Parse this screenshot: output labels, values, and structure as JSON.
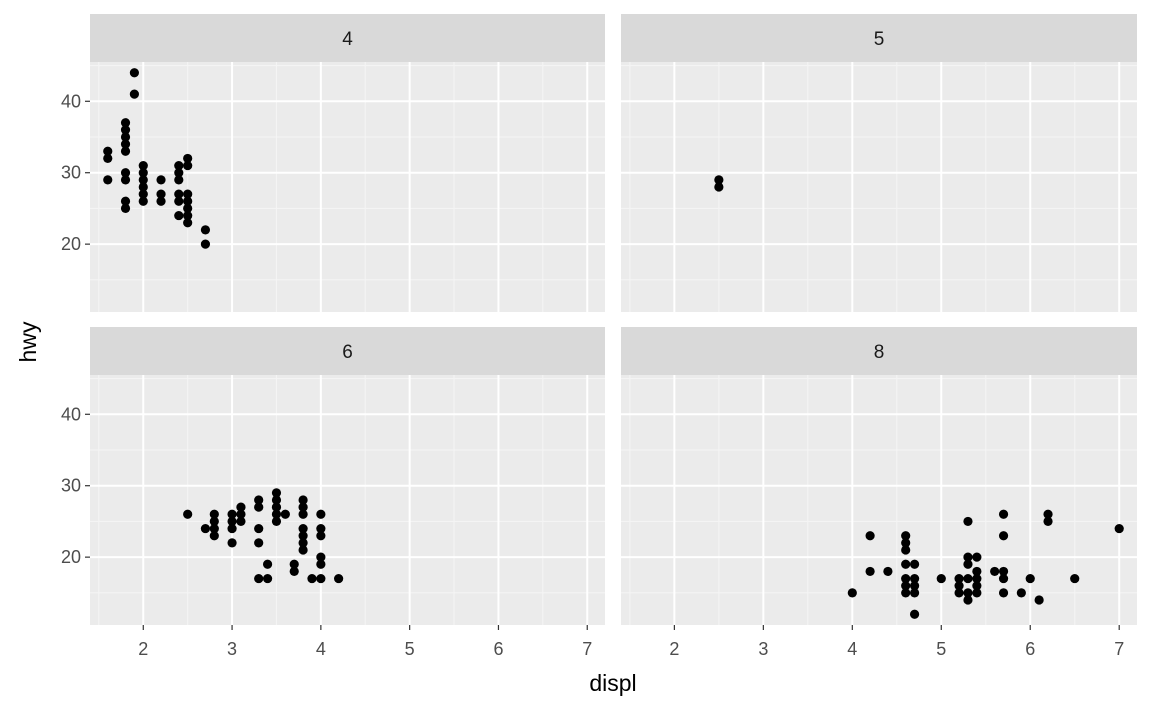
{
  "colors": {
    "panel_background": "#ebebeb",
    "strip_background": "#d9d9d9",
    "grid_major": "#ffffff",
    "grid_minor": "#f5f5f5",
    "point": "#000000",
    "tick": "#333333"
  },
  "chart_data": {
    "type": "scatter",
    "facet_variable": "",
    "xlabel": "displ",
    "ylabel": "hwy",
    "xlim": [
      1.4,
      7.2
    ],
    "ylim": [
      10.5,
      45.5
    ],
    "x_ticks": [
      2,
      3,
      4,
      5,
      6,
      7
    ],
    "y_ticks": [
      20,
      30,
      40
    ],
    "grid": true,
    "panels": [
      {
        "label": "4",
        "points": [
          [
            1.6,
            33
          ],
          [
            1.6,
            32
          ],
          [
            1.6,
            29
          ],
          [
            1.8,
            37
          ],
          [
            1.8,
            36
          ],
          [
            1.8,
            35
          ],
          [
            1.8,
            34
          ],
          [
            1.8,
            33
          ],
          [
            1.8,
            30
          ],
          [
            1.8,
            29
          ],
          [
            1.8,
            26
          ],
          [
            1.8,
            25
          ],
          [
            1.9,
            44
          ],
          [
            1.9,
            41
          ],
          [
            2.0,
            31
          ],
          [
            2.0,
            30
          ],
          [
            2.0,
            29
          ],
          [
            2.0,
            28
          ],
          [
            2.0,
            27
          ],
          [
            2.0,
            26
          ],
          [
            2.2,
            29
          ],
          [
            2.2,
            27
          ],
          [
            2.2,
            26
          ],
          [
            2.4,
            31
          ],
          [
            2.4,
            30
          ],
          [
            2.4,
            29
          ],
          [
            2.4,
            27
          ],
          [
            2.4,
            26
          ],
          [
            2.4,
            24
          ],
          [
            2.5,
            32
          ],
          [
            2.5,
            31
          ],
          [
            2.5,
            27
          ],
          [
            2.5,
            26
          ],
          [
            2.5,
            25
          ],
          [
            2.5,
            24
          ],
          [
            2.5,
            23
          ],
          [
            2.7,
            22
          ],
          [
            2.7,
            20
          ]
        ]
      },
      {
        "label": "5",
        "points": [
          [
            2.5,
            29
          ],
          [
            2.5,
            28
          ]
        ]
      },
      {
        "label": "6",
        "points": [
          [
            2.5,
            26
          ],
          [
            2.7,
            24
          ],
          [
            2.8,
            26
          ],
          [
            2.8,
            25
          ],
          [
            2.8,
            24
          ],
          [
            2.8,
            23
          ],
          [
            3.0,
            26
          ],
          [
            3.0,
            25
          ],
          [
            3.0,
            24
          ],
          [
            3.0,
            22
          ],
          [
            3.1,
            27
          ],
          [
            3.1,
            26
          ],
          [
            3.1,
            25
          ],
          [
            3.3,
            28
          ],
          [
            3.3,
            27
          ],
          [
            3.3,
            24
          ],
          [
            3.3,
            22
          ],
          [
            3.3,
            17
          ],
          [
            3.4,
            19
          ],
          [
            3.4,
            17
          ],
          [
            3.5,
            29
          ],
          [
            3.5,
            28
          ],
          [
            3.5,
            27
          ],
          [
            3.5,
            26
          ],
          [
            3.5,
            25
          ],
          [
            3.6,
            26
          ],
          [
            3.7,
            19
          ],
          [
            3.7,
            18
          ],
          [
            3.8,
            28
          ],
          [
            3.8,
            27
          ],
          [
            3.8,
            26
          ],
          [
            3.8,
            24
          ],
          [
            3.8,
            23
          ],
          [
            3.8,
            22
          ],
          [
            3.8,
            21
          ],
          [
            3.9,
            17
          ],
          [
            4.0,
            26
          ],
          [
            4.0,
            24
          ],
          [
            4.0,
            23
          ],
          [
            4.0,
            20
          ],
          [
            4.0,
            19
          ],
          [
            4.0,
            17
          ],
          [
            4.2,
            17
          ]
        ]
      },
      {
        "label": "8",
        "points": [
          [
            4.0,
            15
          ],
          [
            4.2,
            23
          ],
          [
            4.2,
            18
          ],
          [
            4.4,
            18
          ],
          [
            4.6,
            23
          ],
          [
            4.6,
            22
          ],
          [
            4.6,
            21
          ],
          [
            4.6,
            19
          ],
          [
            4.6,
            17
          ],
          [
            4.6,
            16
          ],
          [
            4.6,
            15
          ],
          [
            4.7,
            19
          ],
          [
            4.7,
            17
          ],
          [
            4.7,
            16
          ],
          [
            4.7,
            15
          ],
          [
            4.7,
            12
          ],
          [
            5.0,
            17
          ],
          [
            5.2,
            17
          ],
          [
            5.2,
            16
          ],
          [
            5.2,
            15
          ],
          [
            5.3,
            25
          ],
          [
            5.3,
            20
          ],
          [
            5.3,
            19
          ],
          [
            5.3,
            17
          ],
          [
            5.3,
            15
          ],
          [
            5.3,
            14
          ],
          [
            5.4,
            20
          ],
          [
            5.4,
            18
          ],
          [
            5.4,
            17
          ],
          [
            5.4,
            16
          ],
          [
            5.4,
            15
          ],
          [
            5.6,
            18
          ],
          [
            5.7,
            26
          ],
          [
            5.7,
            23
          ],
          [
            5.7,
            18
          ],
          [
            5.7,
            17
          ],
          [
            5.7,
            15
          ],
          [
            5.9,
            15
          ],
          [
            6.0,
            17
          ],
          [
            6.1,
            14
          ],
          [
            6.2,
            26
          ],
          [
            6.2,
            25
          ],
          [
            6.5,
            17
          ],
          [
            7.0,
            24
          ]
        ]
      }
    ]
  }
}
